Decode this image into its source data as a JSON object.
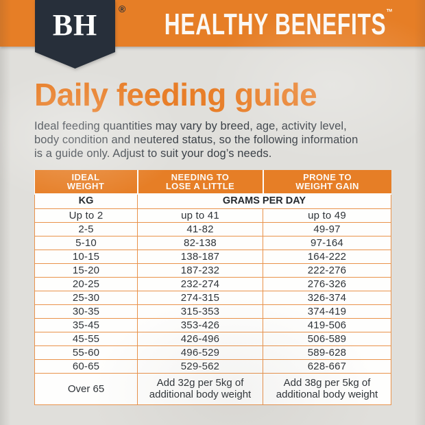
{
  "brand": {
    "badge_text": "BH",
    "registered_mark": "®",
    "banner_title": "HEALTHY BENEFITS",
    "trademark": "™"
  },
  "page": {
    "title": "Daily feeding guide",
    "intro_lines": [
      "Ideal feeding quantities may vary by breed, age, activity level,",
      "body condition and neutered status, so the following information",
      "is a guide only. Adjust to suit your dog’s needs."
    ]
  },
  "table": {
    "col_headers": [
      {
        "line1": "IDEAL",
        "line2": "WEIGHT"
      },
      {
        "line1": "NEEDING TO",
        "line2": "LOSE A LITTLE"
      },
      {
        "line1": "PRONE TO",
        "line2": "WEIGHT GAIN"
      }
    ],
    "unit_row": {
      "weight_unit": "KG",
      "amount_unit": "GRAMS PER DAY"
    },
    "rows": [
      [
        "Up to 2",
        "up to 41",
        "up to 49"
      ],
      [
        "2-5",
        "41-82",
        "49-97"
      ],
      [
        "5-10",
        "82-138",
        "97-164"
      ],
      [
        "10-15",
        "138-187",
        "164-222"
      ],
      [
        "15-20",
        "187-232",
        "222-276"
      ],
      [
        "20-25",
        "232-274",
        "276-326"
      ],
      [
        "25-30",
        "274-315",
        "326-374"
      ],
      [
        "30-35",
        "315-353",
        "374-419"
      ],
      [
        "35-45",
        "353-426",
        "419-506"
      ],
      [
        "45-55",
        "426-496",
        "506-589"
      ],
      [
        "55-60",
        "496-529",
        "589-628"
      ],
      [
        "60-65",
        "529-562",
        "628-667"
      ]
    ],
    "footer_row": {
      "weight": "Over 65",
      "lose": "Add 32g per 5kg of additional body weight",
      "prone": "Add 38g per 5kg of additional body weight"
    }
  },
  "colors": {
    "orange": "#E67E26",
    "navy": "#272F3A",
    "text": "#3A4047",
    "background": "#E0DFDB"
  }
}
